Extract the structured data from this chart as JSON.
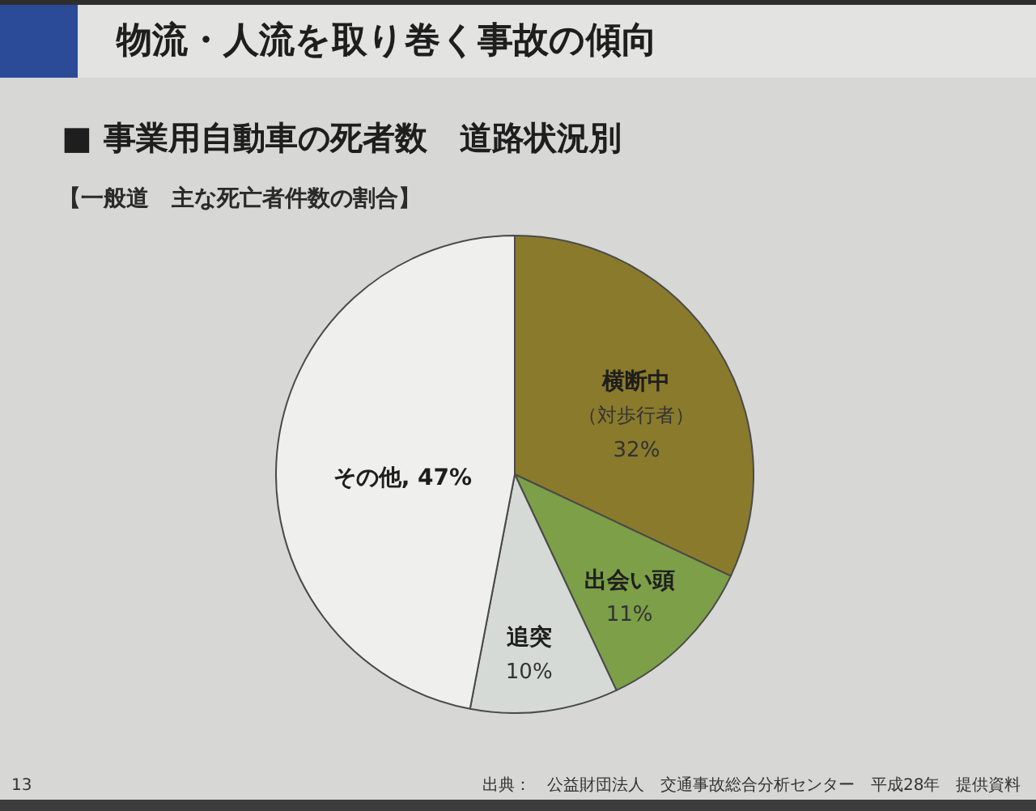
{
  "chart_data": {
    "type": "pie",
    "title": "■ 事業用自動車の死者数　道路状況別",
    "subtitle": "【一般道　主な死亡者件数の割合】",
    "annotations": [
      "物流・人流を取り巻く事故の傾向",
      "出典：　公益財団法人　交通事故総合分析センター　平成28年　提供資料",
      "13"
    ],
    "categories": [
      "横断中（対歩行者）",
      "出会い頭",
      "追突",
      "その他"
    ],
    "values": [
      32,
      11,
      10,
      47
    ],
    "value_labels": [
      "32%",
      "11%",
      "10%",
      "47%"
    ],
    "colors": [
      "#8a7a2c",
      "#7c9f48",
      "#d6dad7",
      "#efefed"
    ]
  }
}
